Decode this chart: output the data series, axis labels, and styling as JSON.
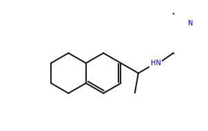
{
  "bg_color": "#ffffff",
  "line_color": "#1a1a1a",
  "N_color": "#0000cc",
  "line_width": 1.5,
  "font_size": 7.0,
  "ring_r": 0.105
}
